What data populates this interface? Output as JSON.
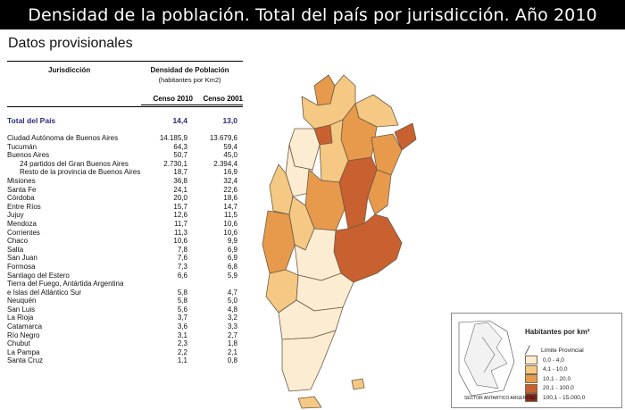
{
  "title": "Densidad de la población. Total del país por jurisdicción. Año 2010",
  "subtitle": "Datos provisionales",
  "table": {
    "col_jurisdiccion": "Jurisdicción",
    "col_densidad": "Densidad de Población",
    "col_unidad": "(habitantes por Km2)",
    "col_censo2010": "Censo 2010",
    "col_censo2001": "Censo 2001",
    "total": {
      "name": "Total del País",
      "c2010": "14,4",
      "c2001": "13,0"
    },
    "rows": [
      {
        "name": "Ciudad Autónoma de Buenos Aires",
        "c2010": "14.185,9",
        "c2001": "13.679,6",
        "indent": false
      },
      {
        "name": "Tucumán",
        "c2010": "64,3",
        "c2001": "59,4",
        "indent": false
      },
      {
        "name": "Buenos Aires",
        "c2010": "50,7",
        "c2001": "45,0",
        "indent": false
      },
      {
        "name": "24 partidos del Gran Buenos Aires",
        "c2010": "2.730,1",
        "c2001": "2.394,4",
        "indent": true
      },
      {
        "name": "Resto de la provincia de Buenos Aires",
        "c2010": "18,7",
        "c2001": "16,9",
        "indent": true
      },
      {
        "name": "Misiones",
        "c2010": "36,8",
        "c2001": "32,4",
        "indent": false
      },
      {
        "name": "Santa Fe",
        "c2010": "24,1",
        "c2001": "22,6",
        "indent": false
      },
      {
        "name": "Córdoba",
        "c2010": "20,0",
        "c2001": "18,6",
        "indent": false
      },
      {
        "name": "Entre Ríos",
        "c2010": "15,7",
        "c2001": "14,7",
        "indent": false
      },
      {
        "name": "Jujuy",
        "c2010": "12,6",
        "c2001": "11,5",
        "indent": false
      },
      {
        "name": "Mendoza",
        "c2010": "11,7",
        "c2001": "10,6",
        "indent": false
      },
      {
        "name": "Corrientes",
        "c2010": "11,3",
        "c2001": "10,6",
        "indent": false
      },
      {
        "name": "Chaco",
        "c2010": "10,6",
        "c2001": "9,9",
        "indent": false
      },
      {
        "name": "Salta",
        "c2010": "7,8",
        "c2001": "6,9",
        "indent": false
      },
      {
        "name": "San Juan",
        "c2010": "7,6",
        "c2001": "6,9",
        "indent": false
      },
      {
        "name": "Formosa",
        "c2010": "7,3",
        "c2001": "6,8",
        "indent": false
      },
      {
        "name": "Santiago del Estero",
        "c2010": "6,6",
        "c2001": "5,9",
        "indent": false
      },
      {
        "name": "Tierra del Fuego, Antártida Argentina",
        "c2010": "",
        "c2001": "",
        "indent": false
      },
      {
        "name": "e Islas del Atlántico Sur",
        "c2010": "5,8",
        "c2001": "4,7",
        "indent": false
      },
      {
        "name": "Neuquén",
        "c2010": "5,8",
        "c2001": "5,0",
        "indent": false
      },
      {
        "name": "San Luis",
        "c2010": "5,6",
        "c2001": "4,8",
        "indent": false
      },
      {
        "name": "La Rioja",
        "c2010": "3,7",
        "c2001": "3,2",
        "indent": false
      },
      {
        "name": "Catamarca",
        "c2010": "3,6",
        "c2001": "3,3",
        "indent": false
      },
      {
        "name": "Río Negro",
        "c2010": "3,1",
        "c2001": "2,7",
        "indent": false
      },
      {
        "name": "Chubut",
        "c2010": "2,3",
        "c2001": "1,8",
        "indent": false
      },
      {
        "name": "La Pampa",
        "c2010": "2,2",
        "c2001": "2,1",
        "indent": false
      },
      {
        "name": "Santa Cruz",
        "c2010": "1,1",
        "c2001": "0,8",
        "indent": false
      }
    ]
  },
  "legend": {
    "title": "Habitantes por km²",
    "limit_label": "Límite Provincial",
    "classes": [
      {
        "label": "0,0 - 4,0",
        "color": "#fbecd2"
      },
      {
        "label": "4,1 - 10,0",
        "color": "#f5c983"
      },
      {
        "label": "10,1 - 20,0",
        "color": "#e89a4c"
      },
      {
        "label": "20,1 - 100,0",
        "color": "#c9602f"
      },
      {
        "label": "100,1 - 15.000,0",
        "color": "#8c2a1b"
      }
    ]
  },
  "antarctic_label": "SECTOR ANTARTICO ARGENTINO"
}
